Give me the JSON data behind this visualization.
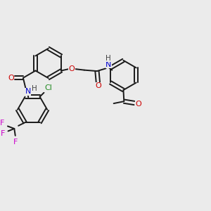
{
  "background_color": "#ebebeb",
  "bond_color": "#1a1a1a",
  "atom_colors": {
    "O": "#cc0000",
    "N": "#0000cc",
    "Cl": "#228B22",
    "F": "#cc00cc",
    "H": "#444444",
    "C": "#1a1a1a"
  },
  "figsize": [
    3.0,
    3.0
  ],
  "dpi": 100
}
